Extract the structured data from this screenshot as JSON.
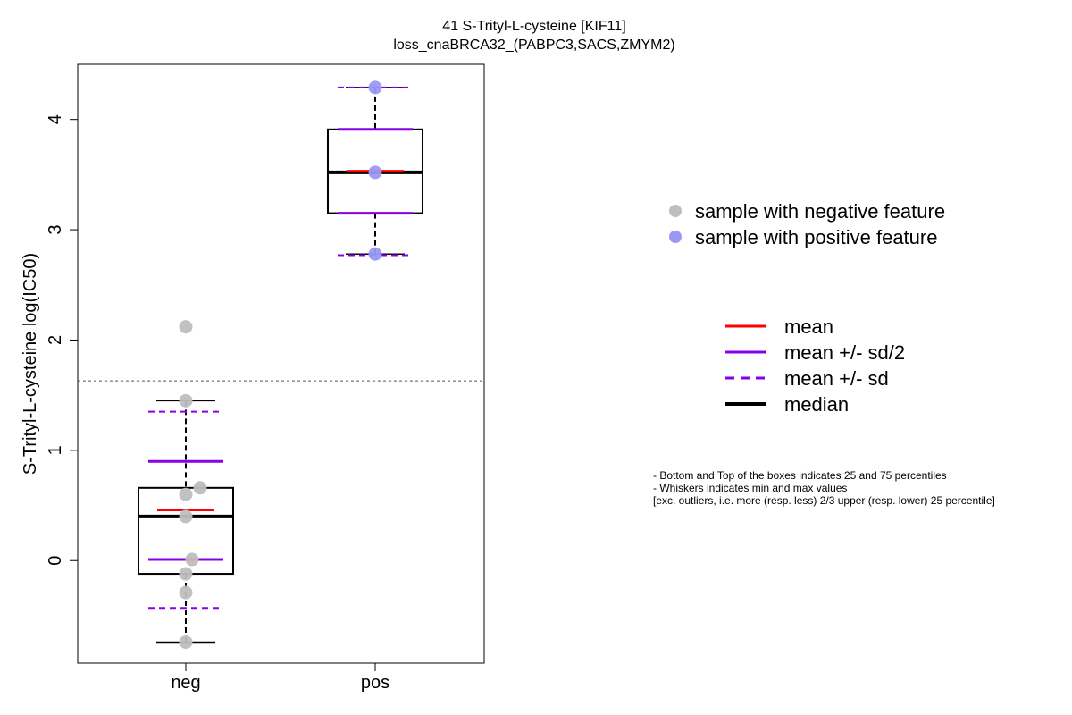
{
  "chart_data": {
    "type": "boxplot",
    "title": "41 S-Trityl-L-cysteine [KIF11]",
    "subtitle": "loss_cnaBRCA32_(PABPC3,SACS,ZMYM2)",
    "xlabel": "",
    "ylabel": "S-Trityl-L-cysteine log(IC50)",
    "ylim": [
      -0.93,
      4.5
    ],
    "yticks": [
      0,
      1,
      2,
      3,
      4
    ],
    "threshold_line": 1.63,
    "grid": false,
    "groups": [
      {
        "category": "neg",
        "color": "#bebebe",
        "points": [
          2.12,
          1.45,
          0.66,
          0.6,
          0.4,
          0.01,
          -0.12,
          -0.29,
          -0.74
        ],
        "min": -0.74,
        "q1": -0.12,
        "median": 0.4,
        "q3": 0.66,
        "max": 1.45,
        "mean": 0.46,
        "mean_minus_half_sd": 0.01,
        "mean_plus_half_sd": 0.9,
        "mean_minus_sd": -0.43,
        "mean_plus_sd": 1.35
      },
      {
        "category": "pos",
        "color": "#9999f5",
        "points": [
          4.29,
          3.52,
          2.78
        ],
        "min": 2.78,
        "q1": 3.15,
        "median": 3.52,
        "q3": 3.91,
        "max": 4.29,
        "mean": 3.53,
        "mean_minus_half_sd": 3.15,
        "mean_plus_half_sd": 3.91,
        "mean_minus_sd": 2.77,
        "mean_plus_sd": 4.29
      }
    ],
    "legend_points": [
      {
        "label": "sample with negative feature",
        "color": "#bebebe"
      },
      {
        "label": "sample with positive feature",
        "color": "#9999f5"
      }
    ],
    "legend_lines": [
      {
        "label": "mean",
        "color": "#ff0000",
        "style": "solid"
      },
      {
        "label": "mean +/- sd/2",
        "color": "#8a00e6",
        "style": "solid"
      },
      {
        "label": "mean +/- sd",
        "color": "#8a00e6",
        "style": "dashed"
      },
      {
        "label": "median",
        "color": "#000000",
        "style": "bold"
      }
    ],
    "notes": [
      "- Bottom and Top of the boxes indicates 25 and 75 percentiles",
      "- Whiskers indicates min and max values",
      "[exc. outliers, i.e. more (resp. less) 2/3 upper (resp. lower) 25 percentile]"
    ]
  }
}
